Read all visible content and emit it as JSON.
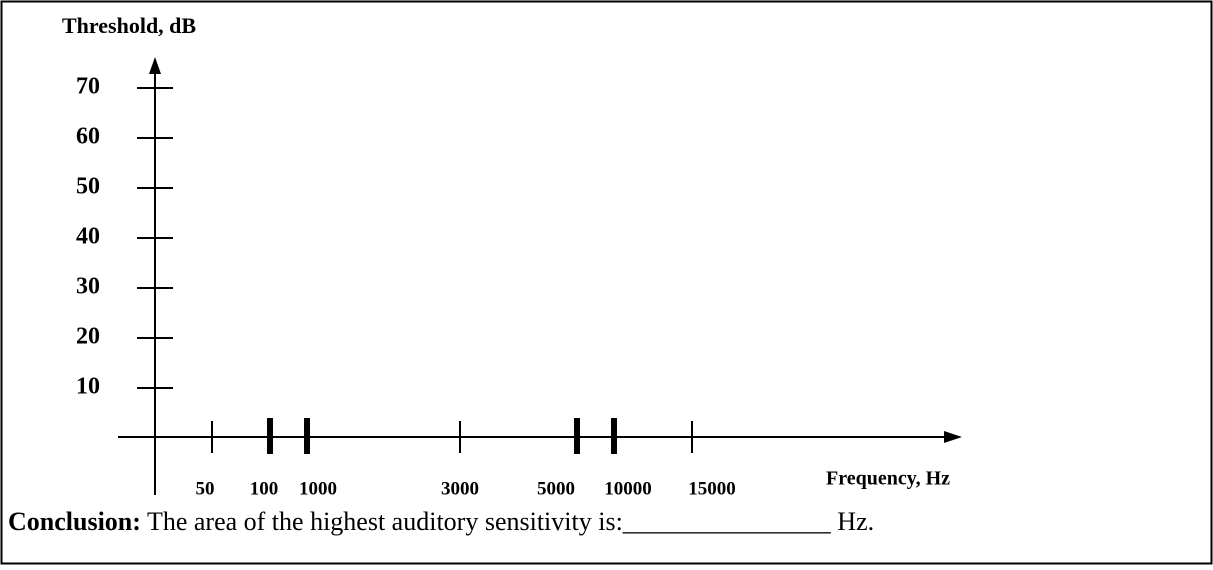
{
  "axes": {
    "y_label": "Threshold, dB",
    "y_ticks": [
      70,
      60,
      50,
      40,
      30,
      20,
      10
    ],
    "x_label": "Frequency, Hz",
    "x_ticks": [
      50,
      100,
      1000,
      3000,
      5000,
      10000,
      15000
    ]
  },
  "conclusion": {
    "label": "Conclusion:",
    "text": "The area of the highest auditory sensitivity is:________________ Hz."
  }
}
